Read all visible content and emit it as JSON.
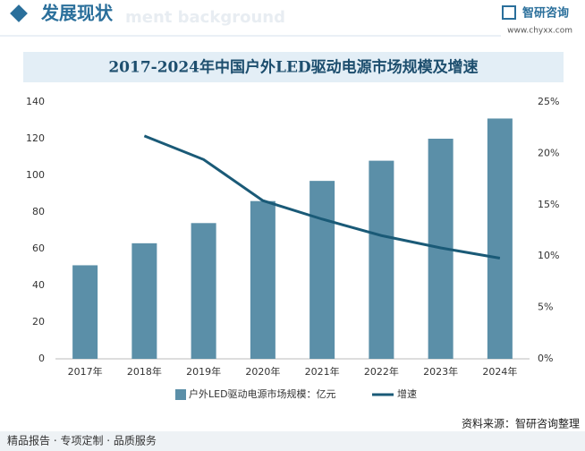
{
  "header": {
    "title": "发展现状",
    "watermark": "ment background",
    "brand": "智研咨询",
    "url": "www.chyxx.com"
  },
  "chart_data": {
    "type": "bar-line",
    "title": "2017-2024年中国户外LED驱动电源市场规模及增速",
    "categories": [
      "2017年",
      "2018年",
      "2019年",
      "2020年",
      "2021年",
      "2022年",
      "2023年",
      "2024年"
    ],
    "series": [
      {
        "name": "户外LED驱动电源市场规模：亿元",
        "type": "bar",
        "color": "#5b8fa8",
        "values": [
          51,
          63,
          74,
          86,
          97,
          108,
          120,
          131
        ]
      },
      {
        "name": "增速",
        "type": "line",
        "axis": "y2",
        "color": "#1a5a77",
        "values": [
          null,
          21.7,
          19.4,
          15.4,
          13.6,
          12.0,
          10.8,
          9.8
        ]
      }
    ],
    "ylim": [
      0,
      140
    ],
    "yticks": [
      0,
      20,
      40,
      60,
      80,
      100,
      120,
      140
    ],
    "y2lim": [
      0,
      25
    ],
    "y2ticks": [
      {
        "value": 0,
        "label": "0%"
      },
      {
        "value": 5,
        "label": "5%"
      },
      {
        "value": 10,
        "label": "10%"
      },
      {
        "value": 15,
        "label": "15%"
      },
      {
        "value": 20,
        "label": "20%"
      },
      {
        "value": 25,
        "label": "25%"
      }
    ],
    "legend": "bottom"
  },
  "footer": {
    "source": "资料来源：智研咨询整理",
    "slogan": "精品报告 · 专项定制 · 品质服务"
  }
}
